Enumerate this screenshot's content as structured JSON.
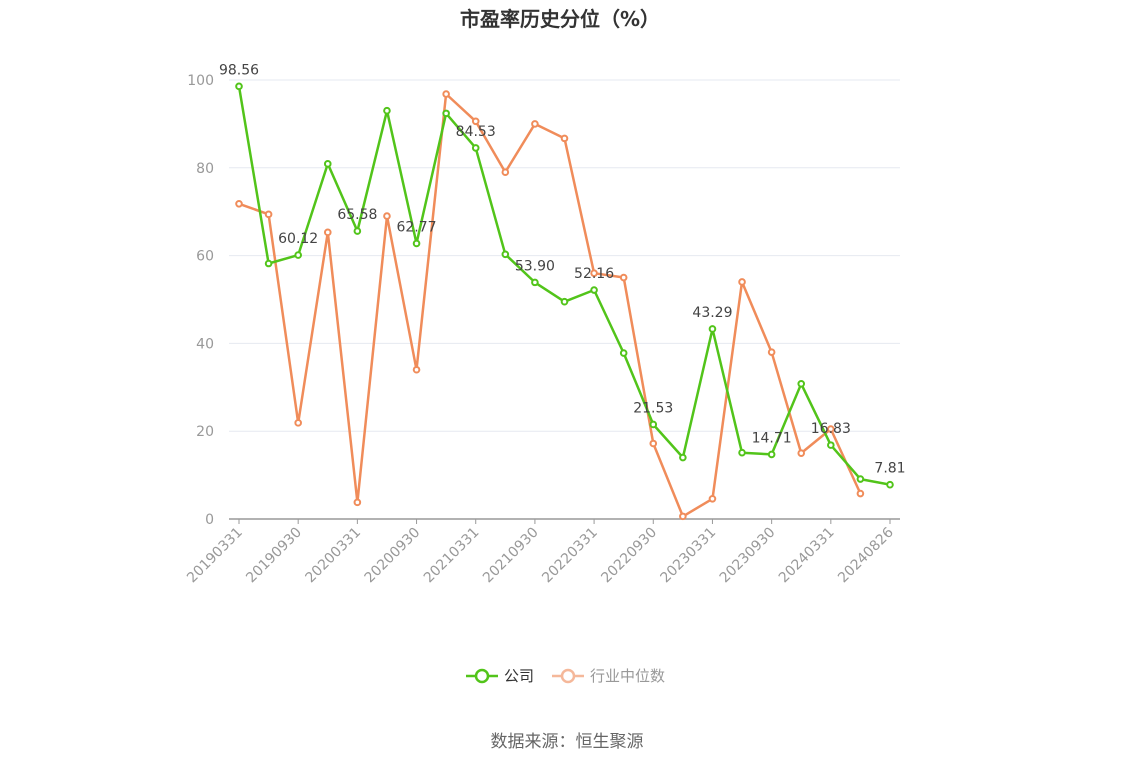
{
  "chart_data": {
    "type": "line",
    "title": "市盈率历史分位（%）",
    "xlabel": "",
    "ylabel": "",
    "ylim": [
      0,
      100
    ],
    "yticks": [
      0,
      20,
      40,
      60,
      80,
      100
    ],
    "x": [
      "20190331",
      "20190630",
      "20190930",
      "20191231",
      "20200331",
      "20200630",
      "20200930",
      "20201231",
      "20210331",
      "20210630",
      "20210930",
      "20211231",
      "20220331",
      "20220630",
      "20220930",
      "20221231",
      "20230331",
      "20230630",
      "20230930",
      "20231231",
      "20240331",
      "20240630",
      "20240826"
    ],
    "x_tick_labels": [
      "20190331",
      "20190930",
      "20200331",
      "20200930",
      "20210331",
      "20210930",
      "20220331",
      "20220930",
      "20230331",
      "20230930",
      "20240331",
      "20240826"
    ],
    "grid": true,
    "legend_position": "bottom",
    "series": [
      {
        "name": "公司",
        "color": "#52c41a",
        "values": [
          98.56,
          58.2,
          60.12,
          80.9,
          65.58,
          93.0,
          62.77,
          92.4,
          84.53,
          60.3,
          53.9,
          49.5,
          52.16,
          37.8,
          21.53,
          14.0,
          43.29,
          15.1,
          14.71,
          30.8,
          16.83,
          9.1,
          7.81
        ],
        "labels": [
          "98.56",
          "",
          "60.12",
          "",
          "65.58",
          "",
          "62.77",
          "",
          "84.53",
          "",
          "53.90",
          "",
          "52.16",
          "",
          "21.53",
          "",
          "43.29",
          "",
          "14.71",
          "",
          "16.83",
          "",
          "7.81"
        ]
      },
      {
        "name": "行业中位数",
        "color": "#f08c5a",
        "values": [
          71.8,
          69.4,
          21.9,
          65.3,
          3.8,
          69.0,
          34.0,
          96.8,
          90.6,
          79.0,
          90.0,
          86.7,
          56.0,
          55.0,
          17.2,
          0.6,
          4.6,
          54.0,
          38.0,
          15.0,
          20.5,
          5.8,
          null
        ],
        "labels": []
      }
    ],
    "legend_inactive_color": "#f5b89a",
    "legend_inactive_text_color": "#999999",
    "legend_active_text_color": "#333333"
  },
  "source": "数据来源：恒生聚源"
}
